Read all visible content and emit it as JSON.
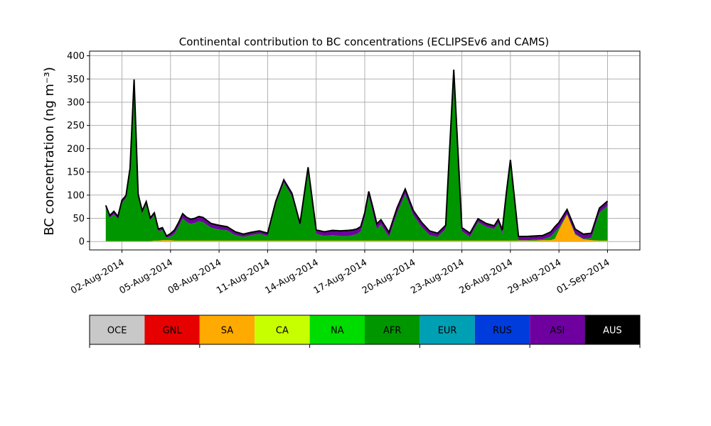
{
  "chart_data": {
    "type": "area",
    "title": "Continental contribution to BC concentrations (ECLIPSEv6 and CAMS)",
    "ylabel": "BC concentration (ng m⁻³)",
    "xlabel": "",
    "ylim": [
      -18,
      410
    ],
    "xlim": [
      "2014-07-31",
      "2014-09-03"
    ],
    "grid": true,
    "y_ticks": [
      0,
      50,
      100,
      150,
      200,
      250,
      300,
      350,
      400
    ],
    "x_ticks": [
      "02-Aug-2014",
      "05-Aug-2014",
      "08-Aug-2014",
      "11-Aug-2014",
      "14-Aug-2014",
      "17-Aug-2014",
      "20-Aug-2014",
      "23-Aug-2014",
      "26-Aug-2014",
      "29-Aug-2014",
      "01-Sep-2014"
    ],
    "x_tick_dates": [
      "2014-08-02",
      "2014-08-05",
      "2014-08-08",
      "2014-08-11",
      "2014-08-14",
      "2014-08-17",
      "2014-08-20",
      "2014-08-23",
      "2014-08-26",
      "2014-08-29",
      "2014-09-01"
    ],
    "legend": [
      "OCE",
      "GNL",
      "SA",
      "CA",
      "NA",
      "AFR",
      "EUR",
      "RUS",
      "ASI",
      "AUS"
    ],
    "colors": {
      "OCE": "#c8c8c8",
      "GNL": "#e60000",
      "SA": "#ffaa00",
      "CA": "#c8ff00",
      "NA": "#00dc00",
      "AFR": "#009600",
      "EUR": "#00a0b4",
      "RUS": "#003cdc",
      "ASI": "#6e00a0",
      "AUS": "#000000"
    },
    "x": [
      "2014-08-01 00:00",
      "2014-08-01 06:00",
      "2014-08-01 12:00",
      "2014-08-01 18:00",
      "2014-08-02 00:00",
      "2014-08-02 06:00",
      "2014-08-02 12:00",
      "2014-08-02 18:00",
      "2014-08-03 00:00",
      "2014-08-03 06:00",
      "2014-08-03 12:00",
      "2014-08-03 18:00",
      "2014-08-04 00:00",
      "2014-08-04 06:00",
      "2014-08-04 12:00",
      "2014-08-04 18:00",
      "2014-08-05 00:00",
      "2014-08-05 06:00",
      "2014-08-05 12:00",
      "2014-08-05 18:00",
      "2014-08-06 00:00",
      "2014-08-06 06:00",
      "2014-08-06 12:00",
      "2014-08-06 18:00",
      "2014-08-07 00:00",
      "2014-08-07 12:00",
      "2014-08-08 00:00",
      "2014-08-08 12:00",
      "2014-08-09 00:00",
      "2014-08-09 12:00",
      "2014-08-10 00:00",
      "2014-08-10 12:00",
      "2014-08-11 00:00",
      "2014-08-11 12:00",
      "2014-08-12 00:00",
      "2014-08-12 12:00",
      "2014-08-13 00:00",
      "2014-08-13 12:00",
      "2014-08-14 00:00",
      "2014-08-14 12:00",
      "2014-08-15 00:00",
      "2014-08-15 12:00",
      "2014-08-16 00:00",
      "2014-08-16 06:00",
      "2014-08-16 12:00",
      "2014-08-16 18:00",
      "2014-08-17 00:00",
      "2014-08-17 06:00",
      "2014-08-17 12:00",
      "2014-08-17 18:00",
      "2014-08-18 00:00",
      "2014-08-18 12:00",
      "2014-08-19 00:00",
      "2014-08-19 12:00",
      "2014-08-20 00:00",
      "2014-08-20 12:00",
      "2014-08-21 00:00",
      "2014-08-21 12:00",
      "2014-08-22 00:00",
      "2014-08-22 12:00",
      "2014-08-23 00:00",
      "2014-08-23 12:00",
      "2014-08-24 00:00",
      "2014-08-24 12:00",
      "2014-08-25 00:00",
      "2014-08-25 06:00",
      "2014-08-25 12:00",
      "2014-08-25 18:00",
      "2014-08-26 00:00",
      "2014-08-26 12:00",
      "2014-08-27 00:00",
      "2014-08-27 12:00",
      "2014-08-28 00:00",
      "2014-08-28 06:00",
      "2014-08-28 12:00",
      "2014-08-28 18:00",
      "2014-08-29 00:00",
      "2014-08-29 12:00",
      "2014-08-30 00:00",
      "2014-08-30 12:00",
      "2014-08-31 00:00",
      "2014-08-31 12:00",
      "2014-09-01 00:00"
    ],
    "series": [
      {
        "name": "SA",
        "values": [
          1,
          1,
          1,
          1,
          1,
          1,
          1,
          1,
          1,
          1,
          1,
          1,
          2,
          2,
          3,
          3,
          3,
          2,
          2,
          2,
          2,
          2,
          2,
          2,
          2,
          2,
          2,
          2,
          2,
          2,
          2,
          2,
          2,
          2,
          2,
          2,
          2,
          2,
          2,
          2,
          2,
          2,
          2,
          2,
          2,
          2,
          2,
          2,
          2,
          2,
          2,
          2,
          2,
          2,
          2,
          2,
          2,
          2,
          2,
          2,
          2,
          2,
          2,
          2,
          2,
          2,
          2,
          2,
          2,
          2,
          2,
          2,
          3,
          3,
          3,
          6,
          25,
          58,
          15,
          5,
          3,
          2,
          2
        ]
      },
      {
        "name": "AFR",
        "values": [
          72,
          50,
          58,
          48,
          82,
          92,
          150,
          340,
          95,
          60,
          80,
          45,
          55,
          20,
          22,
          5,
          8,
          15,
          30,
          48,
          40,
          36,
          38,
          42,
          40,
          28,
          24,
          22,
          12,
          8,
          12,
          15,
          10,
          78,
          125,
          95,
          30,
          150,
          15,
          10,
          12,
          10,
          10,
          12,
          14,
          20,
          50,
          95,
          60,
          25,
          35,
          8,
          60,
          100,
          55,
          30,
          12,
          8,
          25,
          360,
          20,
          8,
          40,
          30,
          25,
          38,
          15,
          95,
          165,
          1,
          1,
          2,
          2,
          5,
          8,
          15,
          5,
          1,
          2,
          1,
          5,
          60,
          75
        ]
      },
      {
        "name": "ASI",
        "values": [
          3,
          3,
          4,
          3,
          4,
          4,
          5,
          5,
          4,
          3,
          3,
          3,
          3,
          3,
          3,
          2,
          4,
          6,
          7,
          8,
          8,
          8,
          8,
          8,
          8,
          7,
          7,
          6,
          5,
          4,
          4,
          4,
          4,
          4,
          4,
          5,
          5,
          6,
          6,
          7,
          8,
          9,
          10,
          9,
          9,
          8,
          8,
          9,
          10,
          9,
          8,
          8,
          9,
          9,
          8,
          8,
          7,
          6,
          6,
          6,
          6,
          6,
          5,
          5,
          5,
          6,
          6,
          6,
          7,
          6,
          6,
          6,
          6,
          7,
          8,
          9,
          9,
          8,
          8,
          8,
          8,
          8,
          8
        ]
      },
      {
        "name": "AUS",
        "values": [
          2,
          2,
          2,
          2,
          2,
          2,
          2,
          3,
          2,
          2,
          2,
          2,
          2,
          2,
          2,
          2,
          2,
          2,
          2,
          2,
          2,
          2,
          2,
          2,
          2,
          2,
          2,
          2,
          2,
          2,
          2,
          2,
          2,
          2,
          2,
          2,
          2,
          2,
          2,
          2,
          2,
          2,
          2,
          2,
          2,
          2,
          2,
          2,
          2,
          2,
          2,
          2,
          2,
          2,
          2,
          2,
          2,
          2,
          2,
          2,
          2,
          2,
          2,
          2,
          2,
          2,
          2,
          2,
          2,
          2,
          2,
          2,
          2,
          2,
          2,
          2,
          2,
          2,
          2,
          2,
          2,
          2,
          2
        ]
      }
    ]
  }
}
